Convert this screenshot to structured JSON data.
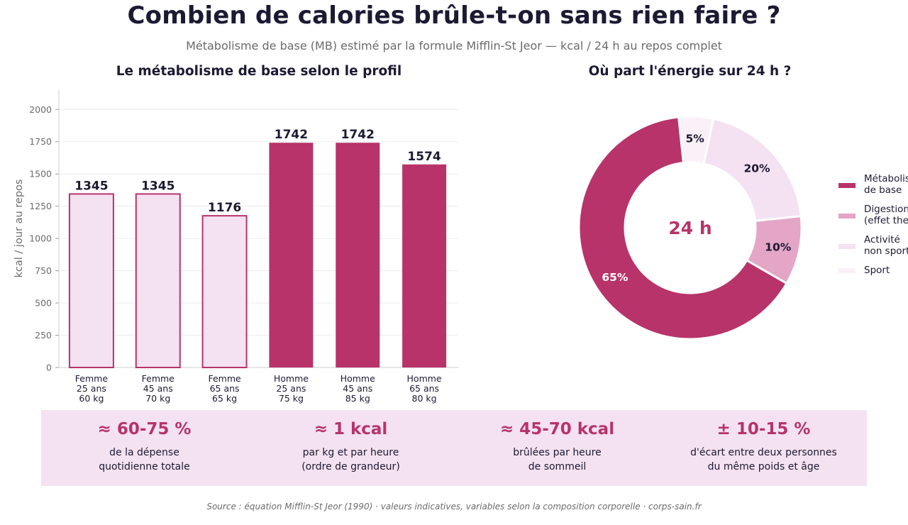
{
  "title": "Combien de calories brûle-t-on sans rien faire ?",
  "subtitle": "Métabolisme de base (MB) estimé par la formule Mifflin-St Jeor — kcal / 24 h au repos complet",
  "colors": {
    "accent": "#b8336a",
    "light_fill": "#f4e2f1",
    "mid_pink": "#e4a5c6",
    "pale_pink": "#f4e2f3",
    "very_pale": "#faf0f8",
    "dark_text": "#1c1a33"
  },
  "chart_data": [
    {
      "type": "bar",
      "title": "Le métabolisme de base selon le profil",
      "ylabel": "kcal / jour au repos",
      "xlabel": "",
      "ylim": [
        0,
        2150
      ],
      "yticks": [
        0,
        250,
        500,
        750,
        1000,
        1250,
        1500,
        1750,
        2000
      ],
      "grid": true,
      "categories": [
        [
          "Femme",
          "25 ans",
          "60 kg"
        ],
        [
          "Femme",
          "45 ans",
          "70 kg"
        ],
        [
          "Femme",
          "65 ans",
          "65 kg"
        ],
        [
          "Homme",
          "25 ans",
          "75 kg"
        ],
        [
          "Homme",
          "45 ans",
          "85 kg"
        ],
        [
          "Homme",
          "65 ans",
          "80 kg"
        ]
      ],
      "values": [
        1345,
        1345,
        1176,
        1742,
        1742,
        1574
      ],
      "data_labels": [
        "1345",
        "1345",
        "1176",
        "1742",
        "1742",
        "1574"
      ],
      "bar_styles": [
        "outline",
        "outline",
        "outline",
        "filled",
        "filled",
        "filled"
      ]
    },
    {
      "type": "pie",
      "title": "Où part l'énergie sur 24 h ?",
      "center_label": "24 h",
      "legend_position": "right",
      "slices": [
        {
          "label": "Métabolisme de base",
          "legend_lines": [
            "Métabolis",
            "de base"
          ],
          "value": 65,
          "display": "65%",
          "color": "#b8336a",
          "label_color": "#ffffff"
        },
        {
          "label": "Digestion (effet thermique)",
          "legend_lines": [
            "Digestion",
            "(effet the"
          ],
          "value": 10,
          "display": "10%",
          "color": "#e4a5c6",
          "label_color": "#1c1a33"
        },
        {
          "label": "Activité non sportive",
          "legend_lines": [
            "Activité",
            "non sport"
          ],
          "value": 20,
          "display": "20%",
          "color": "#f4e2f3",
          "label_color": "#1c1a33"
        },
        {
          "label": "Sport",
          "legend_lines": [
            "Sport"
          ],
          "value": 5,
          "display": "5%",
          "color": "#faf0f8",
          "label_color": "#1c1a33"
        }
      ]
    }
  ],
  "stats": [
    {
      "value": "≈ 60-75 %",
      "desc": "de la dépense\nquotidienne totale"
    },
    {
      "value": "≈ 1 kcal",
      "desc": "par kg et par heure\n(ordre de grandeur)"
    },
    {
      "value": "≈ 45-70 kcal",
      "desc": "brûlées par heure\nde sommeil"
    },
    {
      "value": "± 10-15 %",
      "desc": "d'écart entre deux personnes\ndu même poids et âge"
    }
  ],
  "source": "Source : équation Mifflin-St Jeor (1990) · valeurs indicatives, variables selon la composition corporelle · corps-sain.fr"
}
